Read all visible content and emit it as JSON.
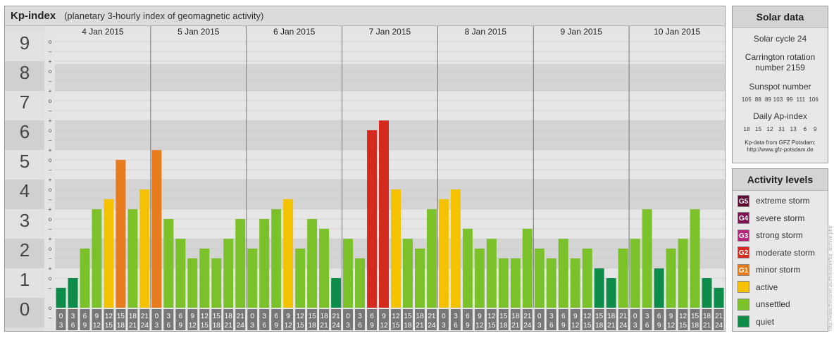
{
  "title": {
    "main": "Kp-index",
    "subtitle": "(planetary 3-hourly index of geomagnetic activity)"
  },
  "chart_data": {
    "type": "bar",
    "y_ticks": [
      "0",
      "1",
      "2",
      "3",
      "4",
      "5",
      "6",
      "7",
      "8",
      "9"
    ],
    "sub_ticks": [
      "+",
      "o",
      "–"
    ],
    "ylim": [
      0,
      9.33
    ],
    "days": [
      "4 Jan 2015",
      "5 Jan 2015",
      "6 Jan 2015",
      "7 Jan 2015",
      "8 Jan 2015",
      "9 Jan 2015",
      "10 Jan 2015"
    ],
    "hour_start": [
      "0",
      "3",
      "6",
      "9",
      "12",
      "15",
      "18",
      "21"
    ],
    "hour_end": [
      "3",
      "6",
      "9",
      "12",
      "15",
      "18",
      "21",
      "24"
    ],
    "values": [
      0.67,
      1.0,
      2.0,
      3.33,
      3.67,
      5.0,
      3.33,
      4.0,
      5.33,
      3.0,
      2.33,
      1.67,
      2.0,
      1.67,
      2.33,
      3.0,
      2.0,
      3.0,
      3.33,
      3.67,
      2.0,
      3.0,
      2.67,
      1.0,
      2.33,
      1.67,
      6.0,
      6.33,
      4.0,
      2.33,
      2.0,
      3.33,
      3.67,
      4.0,
      2.67,
      2.0,
      2.33,
      1.67,
      1.67,
      2.67,
      2.0,
      1.67,
      2.33,
      1.67,
      2.0,
      1.33,
      1.0,
      2.0,
      2.33,
      3.33,
      1.33,
      2.0,
      2.33,
      3.33,
      1.0,
      0.67
    ],
    "bar_colors": [
      "#0e8c4a",
      "#0e8c4a",
      "#7ac12a",
      "#7ac12a",
      "#f5c200",
      "#e87b1c",
      "#7ac12a",
      "#f5c200",
      "#e87b1c",
      "#7ac12a",
      "#7ac12a",
      "#7ac12a",
      "#7ac12a",
      "#7ac12a",
      "#7ac12a",
      "#7ac12a",
      "#7ac12a",
      "#7ac12a",
      "#7ac12a",
      "#f5c200",
      "#7ac12a",
      "#7ac12a",
      "#7ac12a",
      "#0e8c4a",
      "#7ac12a",
      "#7ac12a",
      "#d42b1e",
      "#d42b1e",
      "#f5c200",
      "#7ac12a",
      "#7ac12a",
      "#7ac12a",
      "#f5c200",
      "#f5c200",
      "#7ac12a",
      "#7ac12a",
      "#7ac12a",
      "#7ac12a",
      "#7ac12a",
      "#7ac12a",
      "#7ac12a",
      "#7ac12a",
      "#7ac12a",
      "#7ac12a",
      "#7ac12a",
      "#0e8c4a",
      "#0e8c4a",
      "#7ac12a",
      "#7ac12a",
      "#7ac12a",
      "#0e8c4a",
      "#7ac12a",
      "#7ac12a",
      "#7ac12a",
      "#0e8c4a",
      "#0e8c4a"
    ]
  },
  "solar": {
    "title": "Solar data",
    "cycle": "Solar cycle 24",
    "carrington_1": "Carrington rotation",
    "carrington_2": "number 2159",
    "sunspot_label": "Sunspot number",
    "sunspot_values": "105  88  89 103  99  111  106",
    "ap_label": "Daily Ap-index",
    "ap_values": "18   15   12   31   13    6    9",
    "credit_1": "Kp-data from GFZ Potsdam:",
    "credit_2": "http://www.gfz-potsdam.de"
  },
  "levels": {
    "title": "Activity levels",
    "items": [
      {
        "badge": "G5",
        "label": "extreme storm",
        "color": "#5a0a2e"
      },
      {
        "badge": "G4",
        "label": "severe storm",
        "color": "#7d1452"
      },
      {
        "badge": "G3",
        "label": "strong storm",
        "color": "#b3247a"
      },
      {
        "badge": "G2",
        "label": "moderate storm",
        "color": "#d42b1e"
      },
      {
        "badge": "G1",
        "label": "minor storm",
        "color": "#e87b1c"
      },
      {
        "badge": "",
        "label": "active",
        "color": "#f5c200"
      },
      {
        "badge": "",
        "label": "unsettled",
        "color": "#7ac12a"
      },
      {
        "badge": "",
        "label": "quiet",
        "color": "#0e8c4a"
      }
    ]
  },
  "watermark": "http://www.theusner.eu/theusner/kp_archive.php"
}
